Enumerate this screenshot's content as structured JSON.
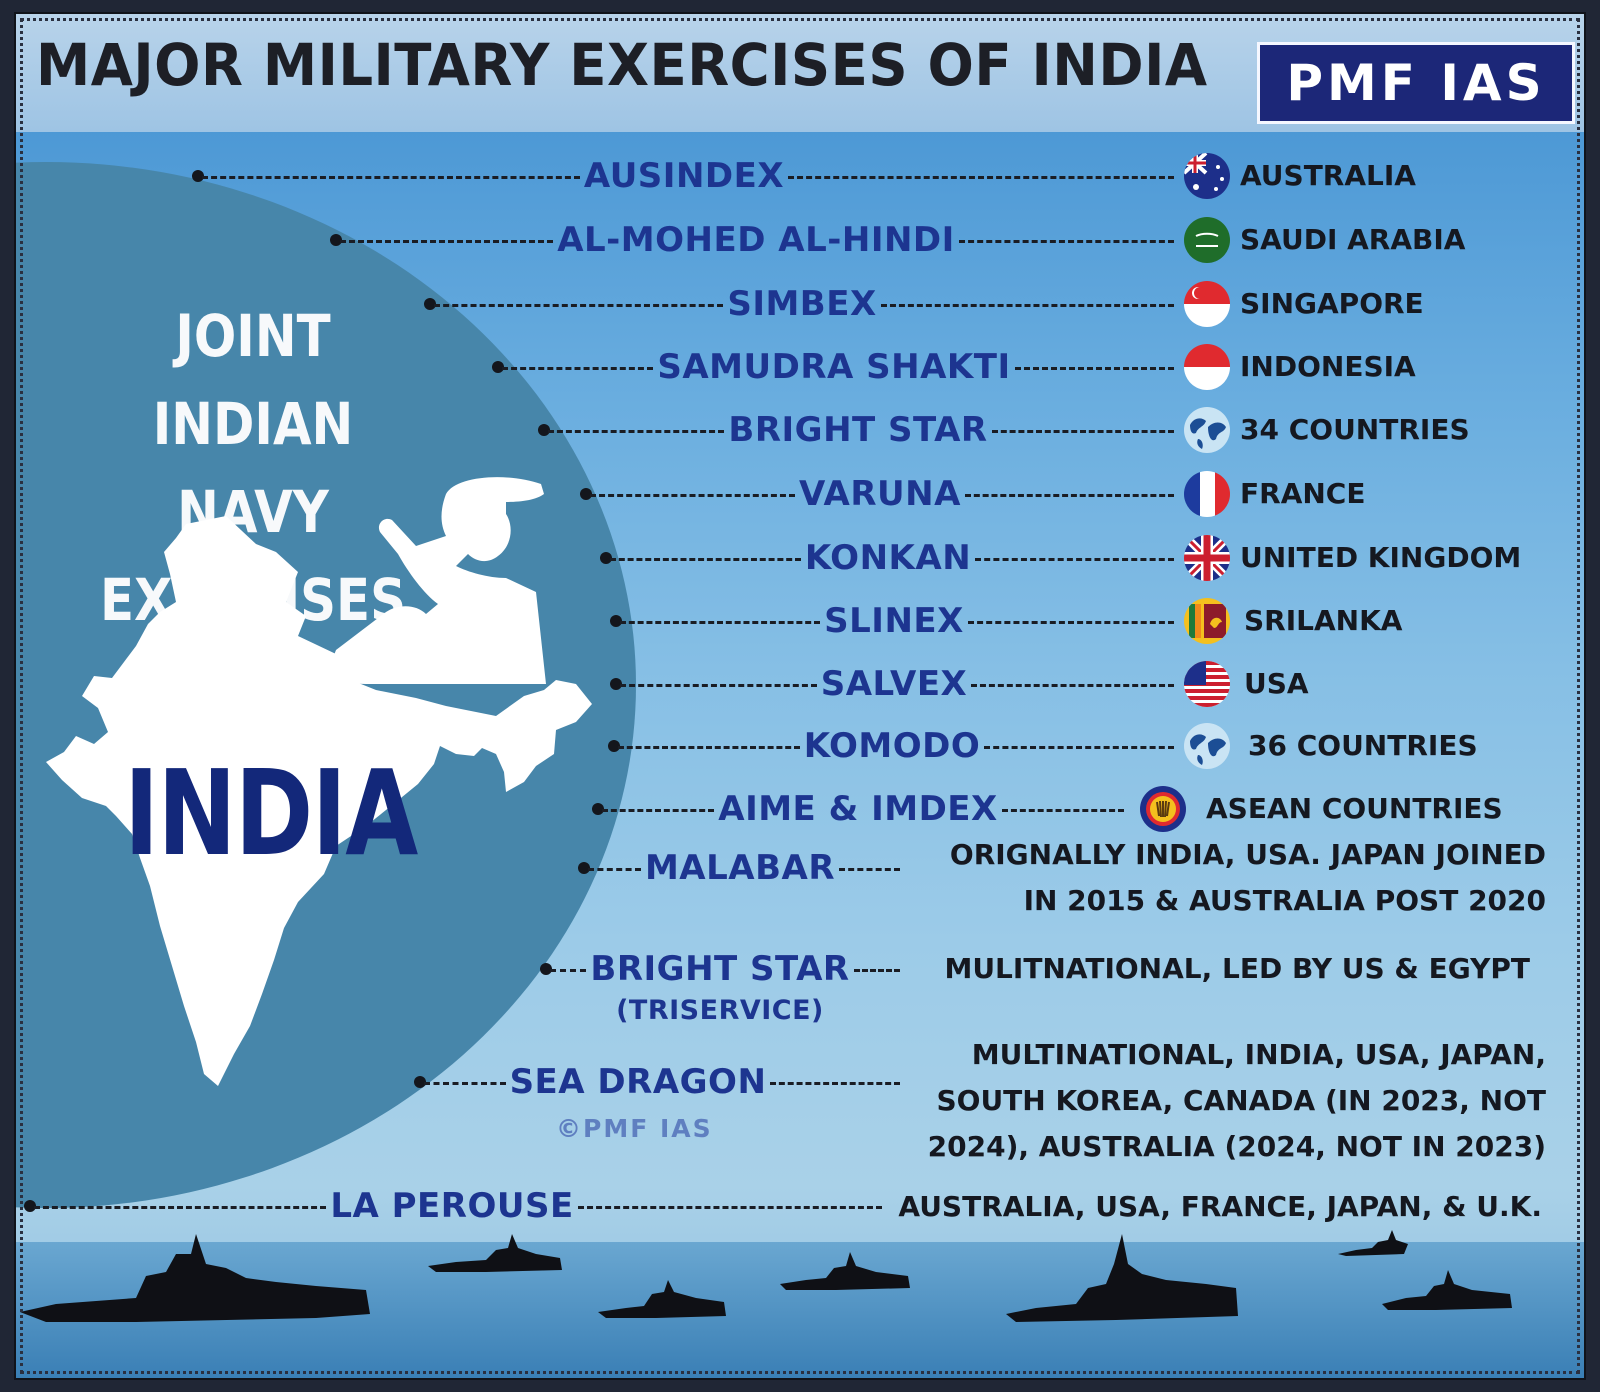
{
  "title": "MAJOR MILITARY EXERCISES OF INDIA",
  "brand": "PMF IAS",
  "panel": {
    "heading_line1": "JOINT INDIAN",
    "heading_line2": "NAVY EXERCISES",
    "map_label": "INDIA"
  },
  "copyright": "©PMF IAS",
  "exercises": [
    {
      "name": "AUSINDEX",
      "flag": "australia-flag-icon",
      "partner": "AUSTRALIA"
    },
    {
      "name": "AL-MOHED AL-HINDI",
      "flag": "saudi-arabia-flag-icon",
      "partner": "SAUDI ARABIA"
    },
    {
      "name": "SIMBEX",
      "flag": "singapore-flag-icon",
      "partner": "SINGAPORE"
    },
    {
      "name": "SAMUDRA SHAKTI",
      "flag": "indonesia-flag-icon",
      "partner": "INDONESIA"
    },
    {
      "name": "BRIGHT STAR",
      "flag": "globe-icon",
      "partner": "34 COUNTRIES"
    },
    {
      "name": "VARUNA",
      "flag": "france-flag-icon",
      "partner": "FRANCE"
    },
    {
      "name": "KONKAN",
      "flag": "uk-flag-icon",
      "partner": "UNITED KINGDOM"
    },
    {
      "name": "SLINEX",
      "flag": "sri-lanka-flag-icon",
      "partner": "SRILANKA"
    },
    {
      "name": "SALVEX",
      "flag": "usa-flag-icon",
      "partner": "USA"
    },
    {
      "name": "KOMODO",
      "flag": "globe-icon",
      "partner": "36 COUNTRIES"
    },
    {
      "name": "AIME & IMDEX",
      "flag": "asean-emblem-icon",
      "partner": "ASEAN COUNTRIES"
    }
  ],
  "multilateral": [
    {
      "name": "MALABAR",
      "lines": [
        "ORIGNALLY INDIA, USA. JAPAN JOINED",
        "IN 2015 & AUSTRALIA POST 2020"
      ]
    },
    {
      "name": "BRIGHT STAR",
      "sub": "(TRISERVICE)",
      "lines": [
        "MULITNATIONAL, LED BY US & EGYPT"
      ]
    },
    {
      "name": "SEA DRAGON",
      "lines": [
        "MULTINATIONAL, INDIA, USA, JAPAN,",
        "SOUTH KOREA, CANADA (IN 2023, NOT",
        "2024), AUSTRALIA (2024, NOT IN 2023)"
      ]
    },
    {
      "name": "LA PEROUSE",
      "lines": [
        "AUSTRALIA, USA, FRANCE, JAPAN, & U.K."
      ]
    }
  ]
}
